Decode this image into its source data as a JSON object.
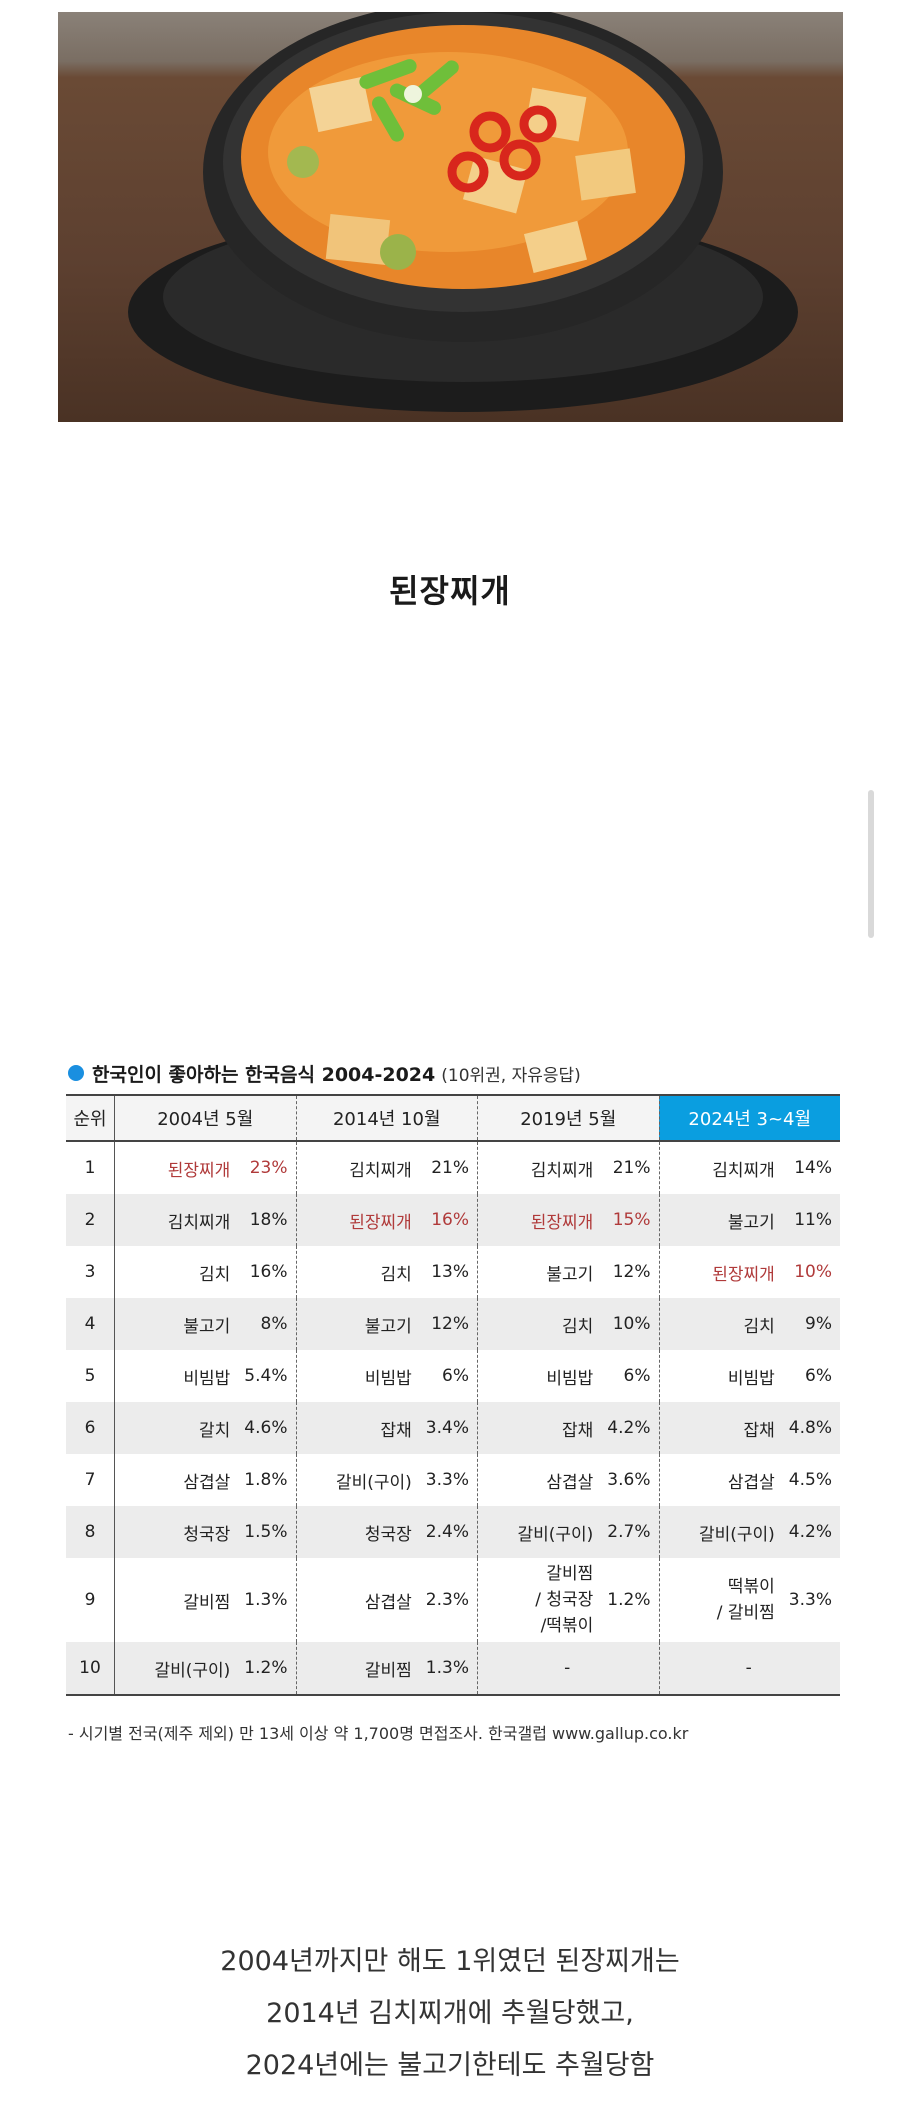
{
  "title": "된장찌개",
  "table": {
    "heading": "한국인이 좋아하는 한국음식 2004-2024",
    "heading_sub": "(10위권, 자유응답)",
    "columns": [
      "순위",
      "2004년 5월",
      "2014년 10월",
      "2019년 5월",
      "2024년 3~4월"
    ],
    "rows": [
      {
        "rank": "1",
        "cells": [
          [
            "된장찌개",
            "23%"
          ],
          [
            "김치찌개",
            "21%"
          ],
          [
            "김치찌개",
            "21%"
          ],
          [
            "김치찌개",
            "14%"
          ]
        ]
      },
      {
        "rank": "2",
        "cells": [
          [
            "김치찌개",
            "18%"
          ],
          [
            "된장찌개",
            "16%"
          ],
          [
            "된장찌개",
            "15%"
          ],
          [
            "불고기",
            "11%"
          ]
        ]
      },
      {
        "rank": "3",
        "cells": [
          [
            "김치",
            "16%"
          ],
          [
            "김치",
            "13%"
          ],
          [
            "불고기",
            "12%"
          ],
          [
            "된장찌개",
            "10%"
          ]
        ]
      },
      {
        "rank": "4",
        "cells": [
          [
            "불고기",
            "8%"
          ],
          [
            "불고기",
            "12%"
          ],
          [
            "김치",
            "10%"
          ],
          [
            "김치",
            "9%"
          ]
        ]
      },
      {
        "rank": "5",
        "cells": [
          [
            "비빔밥",
            "5.4%"
          ],
          [
            "비빔밥",
            "6%"
          ],
          [
            "비빔밥",
            "6%"
          ],
          [
            "비빔밥",
            "6%"
          ]
        ]
      },
      {
        "rank": "6",
        "cells": [
          [
            "갈치",
            "4.6%"
          ],
          [
            "잡채",
            "3.4%"
          ],
          [
            "잡채",
            "4.2%"
          ],
          [
            "잡채",
            "4.8%"
          ]
        ]
      },
      {
        "rank": "7",
        "cells": [
          [
            "삼겹살",
            "1.8%"
          ],
          [
            "갈비(구이)",
            "3.3%"
          ],
          [
            "삼겹살",
            "3.6%"
          ],
          [
            "삼겹살",
            "4.5%"
          ]
        ]
      },
      {
        "rank": "8",
        "cells": [
          [
            "청국장",
            "1.5%"
          ],
          [
            "청국장",
            "2.4%"
          ],
          [
            "갈비(구이)",
            "2.7%"
          ],
          [
            "갈비(구이)",
            "4.2%"
          ]
        ]
      },
      {
        "rank": "9",
        "cells": [
          [
            "갈비찜",
            "1.3%"
          ],
          [
            "삼겹살",
            "2.3%"
          ],
          [
            "갈비찜\n/ 청국장\n/떡볶이",
            "1.2%"
          ],
          [
            "떡볶이\n/ 갈비찜",
            "3.3%"
          ]
        ]
      },
      {
        "rank": "10",
        "cells": [
          [
            "갈비(구이)",
            "1.2%"
          ],
          [
            "갈비찜",
            "1.3%"
          ],
          [
            "-",
            ""
          ],
          [
            "-",
            ""
          ]
        ]
      }
    ],
    "highlight_item": "된장찌개",
    "footnote": "- 시기별 전국(제주 제외) 만 13세 이상 약 1,700명 면접조사. 한국갤럽 www.gallup.co.kr"
  },
  "caption": {
    "line1": "2004년까지만 해도 1위였던 된장찌개는",
    "line2": "2014년 김치찌개에 추월당했고,",
    "line3": "2024년에는 불고기한테도 추월당함"
  },
  "colors": {
    "highlight_text": "#b03a3a",
    "header_accent": "#0a9ee0"
  }
}
